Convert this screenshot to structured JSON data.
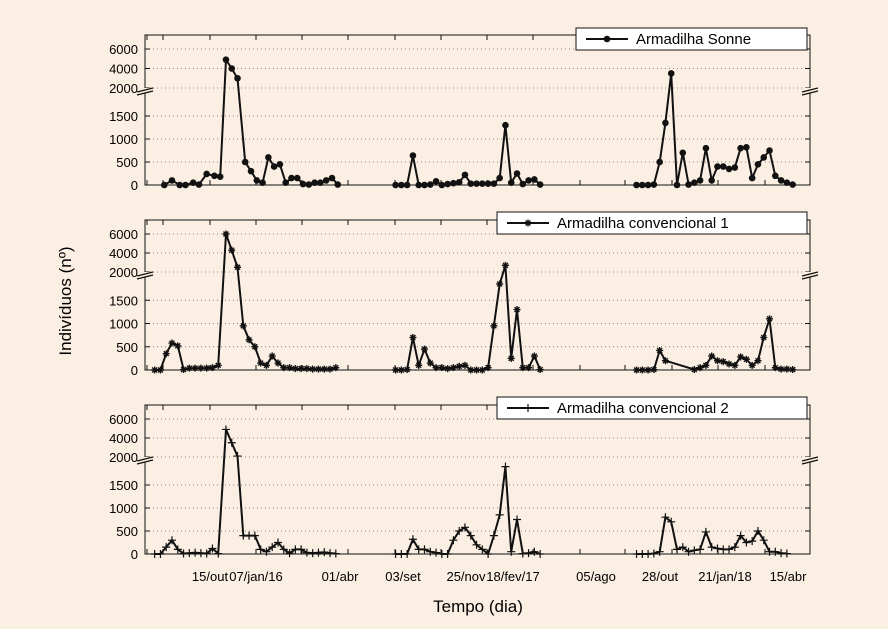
{
  "figure": {
    "ylabel": "Indivíduos (nº)",
    "xlabel": "Tempo (dia)",
    "x_tick_labels": [
      "15/out",
      "07/jan/16",
      "01/abr",
      "03/set",
      "25/nov",
      "18/fev/17",
      "05/ago",
      "28/out",
      "21/jan/18",
      "15/abr"
    ],
    "y_tick_labels_upper": [
      "2000",
      "4000",
      "6000"
    ],
    "y_tick_labels_lower": [
      "0",
      "500",
      "1000",
      "1500"
    ],
    "line_color": "#111111",
    "background_color": "#fbeee2"
  },
  "chart_data": [
    {
      "type": "line",
      "name": "Armadilha Sonne",
      "marker": "circle",
      "y_axis": "broken",
      "ylim_lower": [
        0,
        2000
      ],
      "ylim_upper": [
        2000,
        6000
      ],
      "grid": "horizontal dotted",
      "legend_position": "top-right",
      "segments": [
        [
          [
            10,
            0
          ],
          [
            14,
            100
          ],
          [
            18,
            0
          ],
          [
            21,
            0
          ],
          [
            25,
            50
          ],
          [
            28,
            10
          ],
          [
            32,
            240
          ],
          [
            36,
            200
          ],
          [
            39,
            180
          ],
          [
            42,
            4900
          ],
          [
            45,
            4000
          ],
          [
            48,
            3000
          ],
          [
            52,
            500
          ],
          [
            55,
            300
          ],
          [
            58,
            100
          ],
          [
            61,
            50
          ],
          [
            64,
            600
          ],
          [
            67,
            400
          ],
          [
            70,
            450
          ],
          [
            73,
            50
          ],
          [
            76,
            150
          ],
          [
            79,
            150
          ],
          [
            82,
            20
          ],
          [
            85,
            10
          ],
          [
            88,
            50
          ],
          [
            91,
            50
          ],
          [
            94,
            100
          ],
          [
            97,
            150
          ],
          [
            100,
            10
          ]
        ],
        [
          [
            130,
            0
          ],
          [
            133,
            0
          ],
          [
            136,
            0
          ],
          [
            139,
            640
          ],
          [
            142,
            0
          ],
          [
            145,
            0
          ],
          [
            148,
            10
          ],
          [
            151,
            80
          ],
          [
            154,
            0
          ],
          [
            157,
            20
          ],
          [
            160,
            40
          ],
          [
            163,
            60
          ],
          [
            166,
            220
          ],
          [
            169,
            30
          ],
          [
            172,
            30
          ],
          [
            175,
            30
          ],
          [
            178,
            30
          ],
          [
            181,
            30
          ],
          [
            184,
            150
          ],
          [
            187,
            1300
          ],
          [
            190,
            50
          ],
          [
            193,
            250
          ],
          [
            196,
            20
          ],
          [
            199,
            100
          ],
          [
            202,
            120
          ],
          [
            205,
            10
          ]
        ],
        [
          [
            255,
            0
          ],
          [
            258,
            0
          ],
          [
            261,
            0
          ],
          [
            264,
            10
          ],
          [
            267,
            500
          ],
          [
            270,
            1350
          ],
          [
            273,
            3500
          ],
          [
            276,
            0
          ],
          [
            279,
            700
          ],
          [
            282,
            10
          ],
          [
            285,
            50
          ],
          [
            288,
            100
          ],
          [
            291,
            800
          ],
          [
            294,
            100
          ],
          [
            297,
            400
          ],
          [
            300,
            400
          ],
          [
            303,
            350
          ],
          [
            306,
            380
          ],
          [
            309,
            800
          ],
          [
            312,
            820
          ],
          [
            315,
            150
          ],
          [
            318,
            450
          ],
          [
            321,
            600
          ],
          [
            324,
            750
          ],
          [
            327,
            200
          ],
          [
            330,
            100
          ],
          [
            333,
            50
          ],
          [
            336,
            10
          ]
        ]
      ]
    },
    {
      "type": "line",
      "name": "Armadilha convencional 1",
      "marker": "star",
      "y_axis": "broken",
      "ylim_lower": [
        0,
        2000
      ],
      "ylim_upper": [
        2000,
        6000
      ],
      "grid": "horizontal dotted",
      "legend_position": "top-right",
      "segments": [
        [
          [
            5,
            0
          ],
          [
            8,
            0
          ],
          [
            11,
            350
          ],
          [
            14,
            580
          ],
          [
            17,
            520
          ],
          [
            20,
            10
          ],
          [
            23,
            40
          ],
          [
            26,
            40
          ],
          [
            29,
            40
          ],
          [
            32,
            40
          ],
          [
            35,
            50
          ],
          [
            38,
            100
          ],
          [
            42,
            6000
          ],
          [
            45,
            4300
          ],
          [
            48,
            2500
          ],
          [
            51,
            950
          ],
          [
            54,
            650
          ],
          [
            57,
            500
          ],
          [
            60,
            150
          ],
          [
            63,
            100
          ],
          [
            66,
            300
          ],
          [
            69,
            150
          ],
          [
            72,
            50
          ],
          [
            75,
            50
          ],
          [
            78,
            30
          ],
          [
            81,
            30
          ],
          [
            84,
            30
          ],
          [
            87,
            20
          ],
          [
            90,
            20
          ],
          [
            93,
            20
          ],
          [
            96,
            20
          ],
          [
            99,
            50
          ]
        ],
        [
          [
            130,
            0
          ],
          [
            133,
            0
          ],
          [
            136,
            10
          ],
          [
            139,
            700
          ],
          [
            142,
            100
          ],
          [
            145,
            450
          ],
          [
            148,
            150
          ],
          [
            151,
            50
          ],
          [
            154,
            50
          ],
          [
            157,
            30
          ],
          [
            160,
            50
          ],
          [
            163,
            80
          ],
          [
            166,
            100
          ],
          [
            169,
            0
          ],
          [
            172,
            0
          ],
          [
            175,
            0
          ],
          [
            178,
            50
          ],
          [
            181,
            950
          ],
          [
            184,
            1850
          ],
          [
            187,
            2700
          ],
          [
            190,
            250
          ],
          [
            193,
            1300
          ],
          [
            196,
            50
          ],
          [
            199,
            50
          ],
          [
            202,
            300
          ],
          [
            205,
            10
          ]
        ],
        [
          [
            255,
            0
          ],
          [
            258,
            0
          ],
          [
            261,
            0
          ],
          [
            264,
            10
          ],
          [
            267,
            420
          ],
          [
            270,
            200
          ],
          [
            285,
            10
          ],
          [
            288,
            50
          ],
          [
            291,
            100
          ],
          [
            294,
            300
          ],
          [
            297,
            200
          ],
          [
            300,
            180
          ],
          [
            303,
            130
          ],
          [
            306,
            100
          ],
          [
            309,
            280
          ],
          [
            312,
            230
          ],
          [
            315,
            100
          ],
          [
            318,
            200
          ],
          [
            321,
            700
          ],
          [
            324,
            1100
          ],
          [
            327,
            50
          ],
          [
            330,
            20
          ],
          [
            333,
            20
          ],
          [
            336,
            10
          ]
        ]
      ]
    },
    {
      "type": "line",
      "name": "Armadilha convencional 2",
      "marker": "plus",
      "y_axis": "broken",
      "ylim_lower": [
        0,
        2000
      ],
      "ylim_upper": [
        2000,
        6000
      ],
      "grid": "horizontal dotted",
      "legend_position": "top-right",
      "segments": [
        [
          [
            5,
            0
          ],
          [
            8,
            0
          ],
          [
            11,
            150
          ],
          [
            14,
            300
          ],
          [
            17,
            100
          ],
          [
            20,
            10
          ],
          [
            23,
            20
          ],
          [
            26,
            30
          ],
          [
            29,
            20
          ],
          [
            32,
            10
          ],
          [
            35,
            120
          ],
          [
            38,
            10
          ],
          [
            42,
            4900
          ],
          [
            45,
            3500
          ],
          [
            48,
            2100
          ],
          [
            51,
            400
          ],
          [
            54,
            400
          ],
          [
            57,
            400
          ],
          [
            60,
            100
          ],
          [
            63,
            50
          ],
          [
            66,
            150
          ],
          [
            69,
            250
          ],
          [
            72,
            100
          ],
          [
            75,
            20
          ],
          [
            78,
            100
          ],
          [
            81,
            100
          ],
          [
            84,
            30
          ],
          [
            87,
            20
          ],
          [
            90,
            30
          ],
          [
            93,
            40
          ],
          [
            96,
            20
          ],
          [
            99,
            10
          ]
        ],
        [
          [
            130,
            0
          ],
          [
            133,
            0
          ],
          [
            136,
            0
          ],
          [
            139,
            320
          ],
          [
            142,
            100
          ],
          [
            145,
            100
          ],
          [
            148,
            50
          ],
          [
            151,
            30
          ],
          [
            154,
            0
          ],
          [
            157,
            0
          ],
          [
            160,
            300
          ],
          [
            163,
            500
          ],
          [
            166,
            580
          ],
          [
            169,
            400
          ],
          [
            172,
            200
          ],
          [
            175,
            100
          ],
          [
            178,
            0
          ],
          [
            181,
            400
          ],
          [
            184,
            850
          ],
          [
            187,
            1900
          ],
          [
            190,
            50
          ],
          [
            193,
            750
          ],
          [
            196,
            10
          ],
          [
            199,
            20
          ],
          [
            202,
            50
          ],
          [
            205,
            0
          ]
        ],
        [
          [
            255,
            0
          ],
          [
            258,
            0
          ],
          [
            261,
            0
          ],
          [
            264,
            10
          ],
          [
            267,
            50
          ],
          [
            270,
            800
          ],
          [
            273,
            700
          ],
          [
            276,
            100
          ],
          [
            279,
            150
          ],
          [
            282,
            50
          ],
          [
            285,
            80
          ],
          [
            288,
            100
          ],
          [
            291,
            480
          ],
          [
            294,
            150
          ],
          [
            297,
            120
          ],
          [
            300,
            100
          ],
          [
            303,
            100
          ],
          [
            306,
            150
          ],
          [
            309,
            400
          ],
          [
            312,
            250
          ],
          [
            315,
            280
          ],
          [
            318,
            500
          ],
          [
            321,
            300
          ],
          [
            324,
            50
          ],
          [
            327,
            50
          ],
          [
            330,
            20
          ],
          [
            333,
            10
          ]
        ]
      ]
    }
  ]
}
